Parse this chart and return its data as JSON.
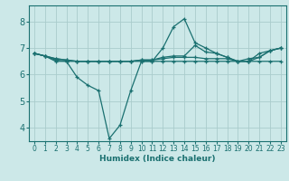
{
  "xlabel": "Humidex (Indice chaleur)",
  "ylabel": "",
  "bg_color": "#cce8e8",
  "grid_color": "#aacccc",
  "line_color": "#1a7070",
  "marker_color": "#1a7070",
  "xlim": [
    -0.5,
    23.5
  ],
  "ylim": [
    3.5,
    8.6
  ],
  "yticks": [
    4,
    5,
    6,
    7,
    8
  ],
  "xticks": [
    0,
    1,
    2,
    3,
    4,
    5,
    6,
    7,
    8,
    9,
    10,
    11,
    12,
    13,
    14,
    15,
    16,
    17,
    18,
    19,
    20,
    21,
    22,
    23
  ],
  "lines": [
    {
      "x": [
        0,
        1,
        2,
        3,
        4,
        5,
        6,
        7,
        8,
        9,
        10,
        11,
        12,
        13,
        14,
        15,
        16,
        17,
        18,
        19,
        20,
        21,
        22,
        23
      ],
      "y": [
        6.8,
        6.7,
        6.5,
        6.5,
        5.9,
        5.6,
        5.4,
        3.6,
        4.1,
        5.4,
        6.5,
        6.5,
        7.0,
        7.8,
        8.1,
        7.2,
        7.0,
        6.8,
        6.65,
        6.5,
        6.5,
        6.8,
        6.9,
        7.0
      ]
    },
    {
      "x": [
        0,
        1,
        2,
        3,
        4,
        5,
        6,
        7,
        8,
        9,
        10,
        11,
        12,
        13,
        14,
        15,
        16,
        17,
        18,
        19,
        20,
        21,
        22,
        23
      ],
      "y": [
        6.8,
        6.7,
        6.55,
        6.5,
        6.5,
        6.5,
        6.5,
        6.5,
        6.5,
        6.5,
        6.5,
        6.5,
        6.5,
        6.5,
        6.5,
        6.5,
        6.5,
        6.5,
        6.5,
        6.5,
        6.5,
        6.5,
        6.5,
        6.5
      ]
    },
    {
      "x": [
        0,
        1,
        2,
        3,
        4,
        5,
        6,
        7,
        8,
        9,
        10,
        11,
        12,
        13,
        14,
        15,
        16,
        17,
        18,
        19,
        20,
        21,
        22,
        23
      ],
      "y": [
        6.8,
        6.7,
        6.6,
        6.55,
        6.5,
        6.5,
        6.5,
        6.5,
        6.5,
        6.5,
        6.55,
        6.55,
        6.6,
        6.65,
        6.65,
        6.65,
        6.6,
        6.6,
        6.6,
        6.5,
        6.5,
        6.65,
        6.9,
        7.0
      ]
    },
    {
      "x": [
        0,
        1,
        2,
        3,
        4,
        5,
        6,
        7,
        8,
        9,
        10,
        11,
        12,
        13,
        14,
        15,
        16,
        17,
        18,
        19,
        20,
        21,
        22,
        23
      ],
      "y": [
        6.8,
        6.7,
        6.6,
        6.55,
        6.5,
        6.5,
        6.5,
        6.5,
        6.5,
        6.5,
        6.55,
        6.55,
        6.65,
        6.7,
        6.7,
        7.1,
        6.85,
        6.8,
        6.65,
        6.5,
        6.6,
        6.65,
        6.9,
        7.0
      ]
    }
  ]
}
